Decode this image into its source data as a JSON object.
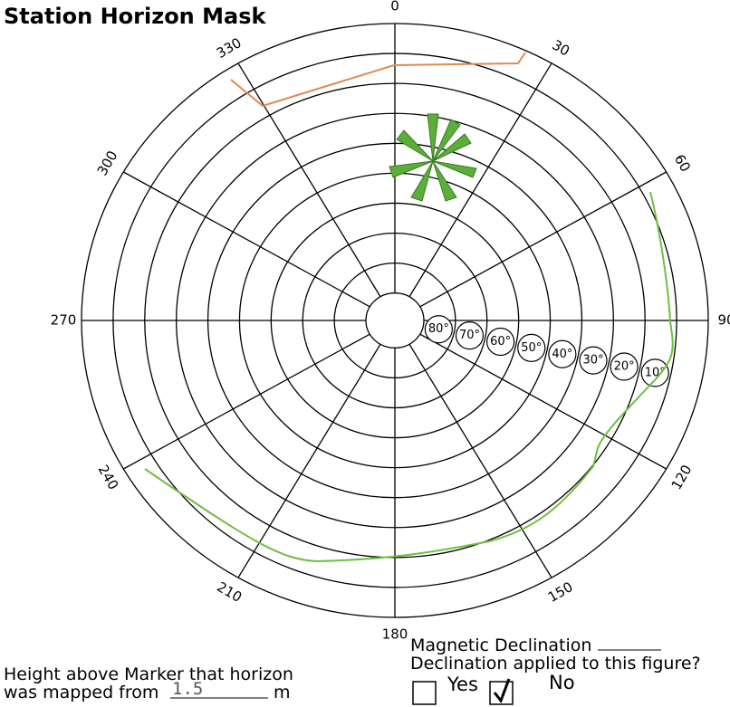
{
  "header": {
    "title": "Station Horizon Mask"
  },
  "diagram": {
    "azimuth_labels": [
      "0",
      "30",
      "60",
      "90",
      "120",
      "150",
      "180",
      "210",
      "240",
      "270",
      "300",
      "330"
    ],
    "elevation_labels": [
      "80°",
      "70°",
      "60°",
      "50°",
      "40°",
      "30°",
      "20°",
      "10°"
    ]
  },
  "form": {
    "height_line1": "Height above Marker that horizon",
    "height_line2": "was mapped from",
    "height_value": "1.5",
    "height_unit": "m",
    "declination": "Magnetic Declination",
    "declination_applied": "Declination applied to this figure?",
    "yes": "Yes",
    "no": "No"
  }
}
